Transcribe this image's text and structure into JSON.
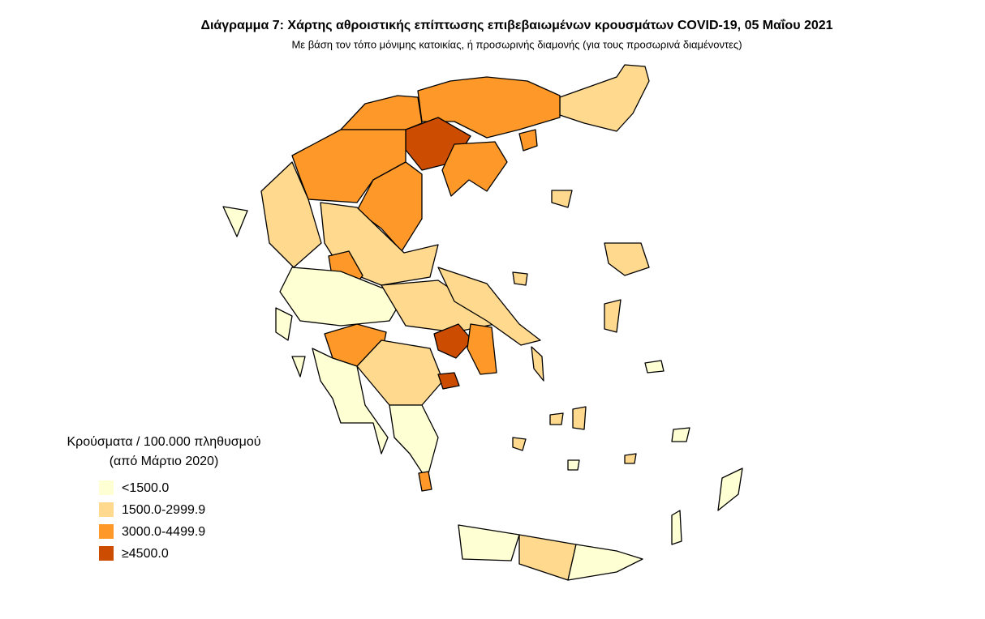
{
  "header": {
    "title": "Διάγραμμα 7: Χάρτης αθροιστικής επίπτωσης επιβεβαιωμένων κρουσμάτων COVID-19, 05 Μαΐου 2021",
    "subtitle": "Με βάση τον τόπο μόνιμης κατοικίας, ή προσωρινής διαμονής (για τους προσωρινά διαμένοντες)"
  },
  "legend": {
    "title": [
      "Κρούσματα / 100.000 πληθυσμού",
      "(από Μάρτιο 2020)"
    ],
    "items": [
      {
        "label": "<1500.0",
        "color": "#ffffd4"
      },
      {
        "label": "1500.0-2999.9",
        "color": "#fed98e"
      },
      {
        "label": "3000.0-4499.9",
        "color": "#fe9929"
      },
      {
        "label": "≥4500.0",
        "color": "#cc4c02"
      }
    ]
  }
}
